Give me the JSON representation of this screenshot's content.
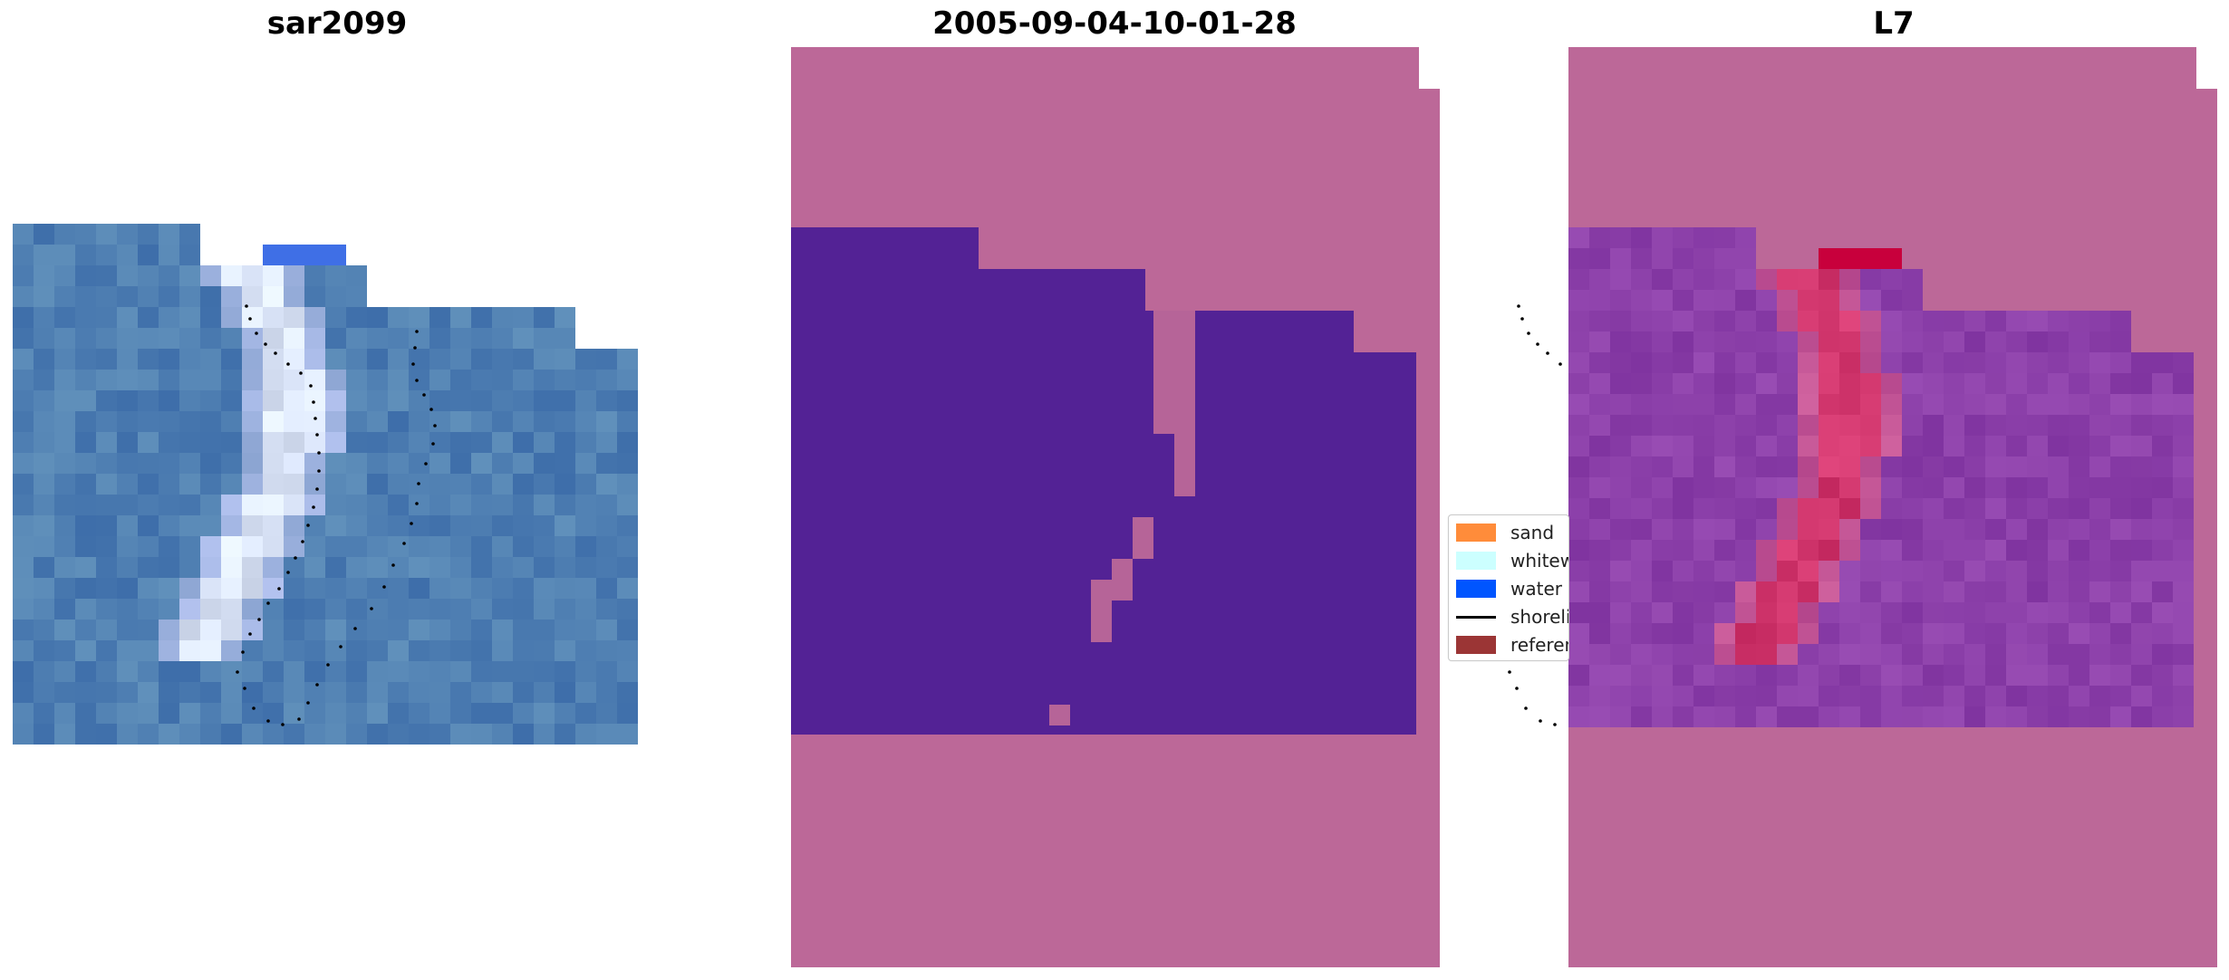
{
  "panels": [
    {
      "title": "sar2099",
      "kind": "rgb"
    },
    {
      "title": "2005-09-04-10-01-28",
      "kind": "classified"
    },
    {
      "title": "L7",
      "kind": "index"
    }
  ],
  "legend": {
    "items": [
      {
        "label": "sand",
        "color": "#ff8c3a",
        "type": "patch"
      },
      {
        "label": "whitewater",
        "color": "#ccffff",
        "type": "patch"
      },
      {
        "label": "water",
        "color": "#0055ff",
        "type": "patch"
      },
      {
        "label": "shoreline",
        "color": "#000000",
        "type": "line"
      },
      {
        "label": "reference",
        "color": "#9b3535",
        "type": "patch"
      }
    ]
  },
  "colors": {
    "nodata_mask": "#bc6898",
    "classified_water": "#532295",
    "rgb_water": "#4873b3",
    "index_base": "#8a3ba5",
    "index_high": "#cf1a45"
  }
}
